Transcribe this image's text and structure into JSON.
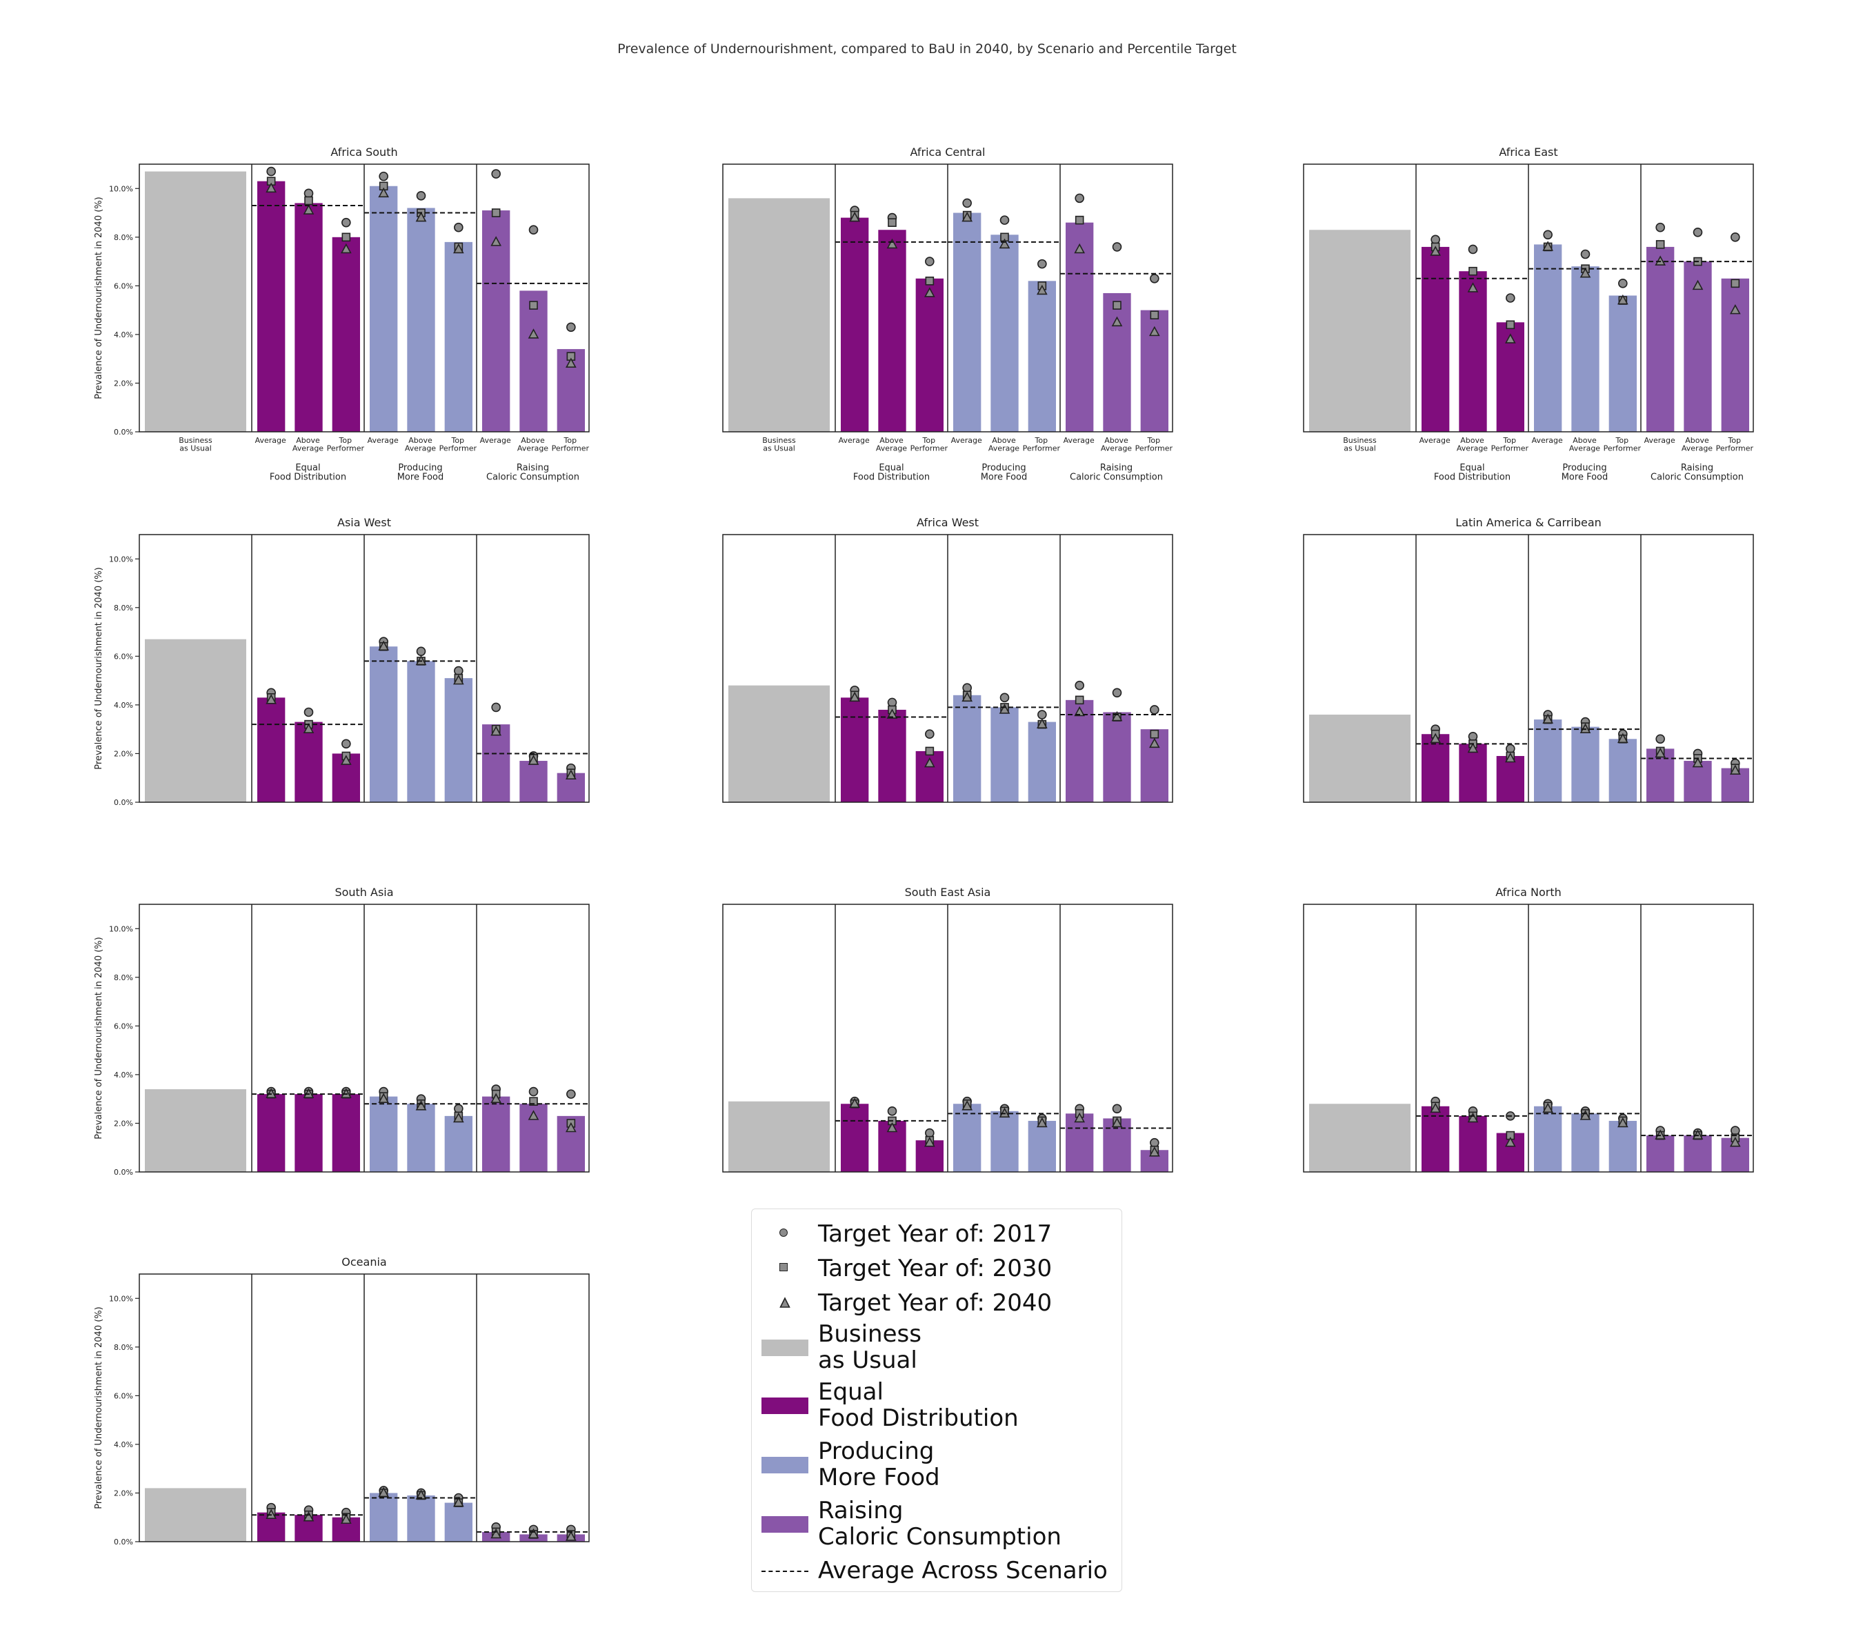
{
  "figure": {
    "title": "Prevalence of Undernourishment, compared to BaU in 2040, by Scenario and Percentile Target"
  },
  "colors": {
    "bau": "#bdbdbd",
    "equal": "#800d7d",
    "producing": "#8f98c8",
    "raising": "#8956a8",
    "marker_fill": "#8c8c8c",
    "marker_edge": "#222222"
  },
  "legend": {
    "items": [
      {
        "kind": "marker",
        "shape": "circle",
        "label": "Target Year of: 2017"
      },
      {
        "kind": "marker",
        "shape": "square",
        "label": "Target Year of: 2030"
      },
      {
        "kind": "marker",
        "shape": "triangle",
        "label": "Target Year of: 2040"
      },
      {
        "kind": "swatch",
        "color": "#bdbdbd",
        "label": "Business\nas Usual"
      },
      {
        "kind": "swatch",
        "color": "#800d7d",
        "label": "Equal\nFood Distribution"
      },
      {
        "kind": "swatch",
        "color": "#8f98c8",
        "label": "Producing\nMore Food"
      },
      {
        "kind": "swatch",
        "color": "#8956a8",
        "label": "Raising\nCaloric Consumption"
      },
      {
        "kind": "line",
        "label": "Average Across Scenario"
      }
    ]
  },
  "chart_data": {
    "type": "bar",
    "ylabel": "Prevalence of Undernourishment in 2040 (%)",
    "ylim": [
      0,
      11
    ],
    "yticks": [
      "0.0%",
      "2.0%",
      "4.0%",
      "6.0%",
      "8.0%",
      "10.0%"
    ],
    "bau_label": "Business\nas Usual",
    "bar_labels": [
      "Average",
      "Above\nAverage",
      "Top\nPerformer"
    ],
    "scenario_labels": [
      "Equal\nFood Distribution",
      "Producing\nMore Food",
      "Raising\nCaloric Consumption"
    ],
    "series_markers": [
      "Target Year of: 2017",
      "Target Year of: 2030",
      "Target Year of: 2040"
    ],
    "regions": [
      {
        "title": "Africa South",
        "bau": 10.7,
        "scenarios": [
          {
            "avg": 9.3,
            "bars": [
              10.3,
              9.4,
              8.0
            ],
            "markers": [
              [
                10.7,
                10.3,
                10.0
              ],
              [
                9.8,
                9.5,
                9.1
              ],
              [
                8.6,
                8.0,
                7.5
              ]
            ]
          },
          {
            "avg": 9.0,
            "bars": [
              10.1,
              9.2,
              7.8
            ],
            "markers": [
              [
                10.5,
                10.1,
                9.8
              ],
              [
                9.7,
                9.0,
                8.8
              ],
              [
                8.4,
                7.6,
                7.5
              ]
            ]
          },
          {
            "avg": 6.1,
            "bars": [
              9.1,
              5.8,
              3.4
            ],
            "markers": [
              [
                10.6,
                9.0,
                7.8
              ],
              [
                8.3,
                5.2,
                4.0
              ],
              [
                4.3,
                3.1,
                2.8
              ]
            ]
          }
        ]
      },
      {
        "title": "Africa Central",
        "bau": 9.6,
        "scenarios": [
          {
            "avg": 7.8,
            "bars": [
              8.8,
              8.3,
              6.3
            ],
            "markers": [
              [
                9.1,
                8.9,
                8.8
              ],
              [
                8.8,
                8.6,
                7.7
              ],
              [
                7.0,
                6.2,
                5.7
              ]
            ]
          },
          {
            "avg": 7.8,
            "bars": [
              9.0,
              8.1,
              6.2
            ],
            "markers": [
              [
                9.4,
                8.9,
                8.8
              ],
              [
                8.7,
                8.0,
                7.7
              ],
              [
                6.9,
                6.0,
                5.8
              ]
            ]
          },
          {
            "avg": 6.5,
            "bars": [
              8.6,
              5.7,
              5.0
            ],
            "markers": [
              [
                9.6,
                8.7,
                7.5
              ],
              [
                7.6,
                5.2,
                4.5
              ],
              [
                6.3,
                4.8,
                4.1
              ]
            ]
          }
        ]
      },
      {
        "title": "Africa East",
        "bau": 8.3,
        "scenarios": [
          {
            "avg": 6.3,
            "bars": [
              7.6,
              6.6,
              4.5
            ],
            "markers": [
              [
                7.9,
                7.6,
                7.4
              ],
              [
                7.5,
                6.6,
                5.9
              ],
              [
                5.5,
                4.4,
                3.8
              ]
            ]
          },
          {
            "avg": 6.7,
            "bars": [
              7.7,
              6.8,
              5.6
            ],
            "markers": [
              [
                8.1,
                7.6,
                7.6
              ],
              [
                7.3,
                6.7,
                6.5
              ],
              [
                6.1,
                5.4,
                5.4
              ]
            ]
          },
          {
            "avg": 7.0,
            "bars": [
              7.6,
              7.0,
              6.3
            ],
            "markers": [
              [
                8.4,
                7.7,
                7.0
              ],
              [
                8.2,
                7.0,
                6.0
              ],
              [
                8.0,
                6.1,
                5.0
              ]
            ]
          }
        ]
      },
      {
        "title": "Asia West",
        "bau": 6.7,
        "scenarios": [
          {
            "avg": 3.2,
            "bars": [
              4.3,
              3.3,
              2.0
            ],
            "markers": [
              [
                4.5,
                4.3,
                4.2
              ],
              [
                3.7,
                3.2,
                3.0
              ],
              [
                2.4,
                1.9,
                1.7
              ]
            ]
          },
          {
            "avg": 5.8,
            "bars": [
              6.4,
              5.8,
              5.1
            ],
            "markers": [
              [
                6.6,
                6.4,
                6.4
              ],
              [
                6.2,
                5.8,
                5.8
              ],
              [
                5.4,
                5.1,
                5.0
              ]
            ]
          },
          {
            "avg": 2.0,
            "bars": [
              3.2,
              1.7,
              1.2
            ],
            "markers": [
              [
                3.9,
                3.0,
                2.9
              ],
              [
                1.9,
                1.8,
                1.7
              ],
              [
                1.4,
                1.2,
                1.1
              ]
            ]
          }
        ]
      },
      {
        "title": "Africa West",
        "bau": 4.8,
        "scenarios": [
          {
            "avg": 3.5,
            "bars": [
              4.3,
              3.8,
              2.1
            ],
            "markers": [
              [
                4.6,
                4.4,
                4.3
              ],
              [
                4.1,
                3.8,
                3.6
              ],
              [
                2.8,
                2.1,
                1.6
              ]
            ]
          },
          {
            "avg": 3.9,
            "bars": [
              4.4,
              3.9,
              3.3
            ],
            "markers": [
              [
                4.7,
                4.4,
                4.3
              ],
              [
                4.3,
                3.9,
                3.8
              ],
              [
                3.6,
                3.2,
                3.2
              ]
            ]
          },
          {
            "avg": 3.6,
            "bars": [
              4.2,
              3.7,
              3.0
            ],
            "markers": [
              [
                4.8,
                4.2,
                3.7
              ],
              [
                4.5,
                3.5,
                3.5
              ],
              [
                3.8,
                2.8,
                2.4
              ]
            ]
          }
        ]
      },
      {
        "title": "Latin America & Carribean",
        "bau": 3.6,
        "scenarios": [
          {
            "avg": 2.4,
            "bars": [
              2.8,
              2.4,
              1.9
            ],
            "markers": [
              [
                3.0,
                2.8,
                2.6
              ],
              [
                2.7,
                2.4,
                2.2
              ],
              [
                2.2,
                1.9,
                1.8
              ]
            ]
          },
          {
            "avg": 3.0,
            "bars": [
              3.4,
              3.1,
              2.6
            ],
            "markers": [
              [
                3.6,
                3.4,
                3.4
              ],
              [
                3.3,
                3.1,
                3.0
              ],
              [
                2.8,
                2.6,
                2.6
              ]
            ]
          },
          {
            "avg": 1.8,
            "bars": [
              2.2,
              1.7,
              1.4
            ],
            "markers": [
              [
                2.6,
                2.1,
                2.0
              ],
              [
                2.0,
                1.8,
                1.6
              ],
              [
                1.6,
                1.4,
                1.3
              ]
            ]
          }
        ]
      },
      {
        "title": "South Asia",
        "bau": 3.4,
        "scenarios": [
          {
            "avg": 3.2,
            "bars": [
              3.2,
              3.2,
              3.2
            ],
            "markers": [
              [
                3.3,
                3.2,
                3.2
              ],
              [
                3.3,
                3.2,
                3.2
              ],
              [
                3.3,
                3.2,
                3.2
              ]
            ]
          },
          {
            "avg": 2.8,
            "bars": [
              3.1,
              2.8,
              2.3
            ],
            "markers": [
              [
                3.3,
                3.1,
                3.0
              ],
              [
                3.0,
                2.8,
                2.7
              ],
              [
                2.6,
                2.3,
                2.2
              ]
            ]
          },
          {
            "avg": 2.8,
            "bars": [
              3.1,
              2.8,
              2.3
            ],
            "markers": [
              [
                3.4,
                3.2,
                3.0
              ],
              [
                3.3,
                2.9,
                2.3
              ],
              [
                3.2,
                2.0,
                1.8
              ]
            ]
          }
        ]
      },
      {
        "title": "South East Asia",
        "bau": 2.9,
        "scenarios": [
          {
            "avg": 2.1,
            "bars": [
              2.8,
              2.1,
              1.3
            ],
            "markers": [
              [
                2.9,
                2.8,
                2.8
              ],
              [
                2.5,
                2.1,
                1.8
              ],
              [
                1.6,
                1.3,
                1.2
              ]
            ]
          },
          {
            "avg": 2.4,
            "bars": [
              2.8,
              2.5,
              2.1
            ],
            "markers": [
              [
                2.9,
                2.8,
                2.7
              ],
              [
                2.6,
                2.5,
                2.4
              ],
              [
                2.2,
                2.1,
                2.0
              ]
            ]
          },
          {
            "avg": 1.8,
            "bars": [
              2.4,
              2.2,
              0.9
            ],
            "markers": [
              [
                2.6,
                2.4,
                2.2
              ],
              [
                2.6,
                2.1,
                2.0
              ],
              [
                1.2,
                0.9,
                0.8
              ]
            ]
          }
        ]
      },
      {
        "title": "Africa North",
        "bau": 2.8,
        "scenarios": [
          {
            "avg": 2.3,
            "bars": [
              2.7,
              2.3,
              1.6
            ],
            "markers": [
              [
                2.9,
                2.7,
                2.6
              ],
              [
                2.5,
                2.3,
                2.2
              ],
              [
                2.3,
                1.5,
                1.2
              ]
            ]
          },
          {
            "avg": 2.4,
            "bars": [
              2.7,
              2.4,
              2.1
            ],
            "markers": [
              [
                2.8,
                2.7,
                2.6
              ],
              [
                2.5,
                2.4,
                2.3
              ],
              [
                2.2,
                2.1,
                2.0
              ]
            ]
          },
          {
            "avg": 1.5,
            "bars": [
              1.5,
              1.5,
              1.4
            ],
            "markers": [
              [
                1.7,
                1.5,
                1.5
              ],
              [
                1.6,
                1.5,
                1.5
              ],
              [
                1.7,
                1.4,
                1.2
              ]
            ]
          }
        ]
      },
      {
        "title": "Oceania",
        "bau": 2.2,
        "scenarios": [
          {
            "avg": 1.1,
            "bars": [
              1.2,
              1.1,
              1.0
            ],
            "markers": [
              [
                1.4,
                1.2,
                1.1
              ],
              [
                1.3,
                1.1,
                1.0
              ],
              [
                1.2,
                1.0,
                0.9
              ]
            ]
          },
          {
            "avg": 1.8,
            "bars": [
              2.0,
              1.9,
              1.6
            ],
            "markers": [
              [
                2.1,
                2.0,
                2.0
              ],
              [
                2.0,
                1.9,
                1.9
              ],
              [
                1.8,
                1.6,
                1.6
              ]
            ]
          },
          {
            "avg": 0.4,
            "bars": [
              0.4,
              0.3,
              0.3
            ],
            "markers": [
              [
                0.6,
                0.4,
                0.3
              ],
              [
                0.5,
                0.3,
                0.3
              ],
              [
                0.5,
                0.3,
                0.2
              ]
            ]
          }
        ]
      }
    ]
  }
}
